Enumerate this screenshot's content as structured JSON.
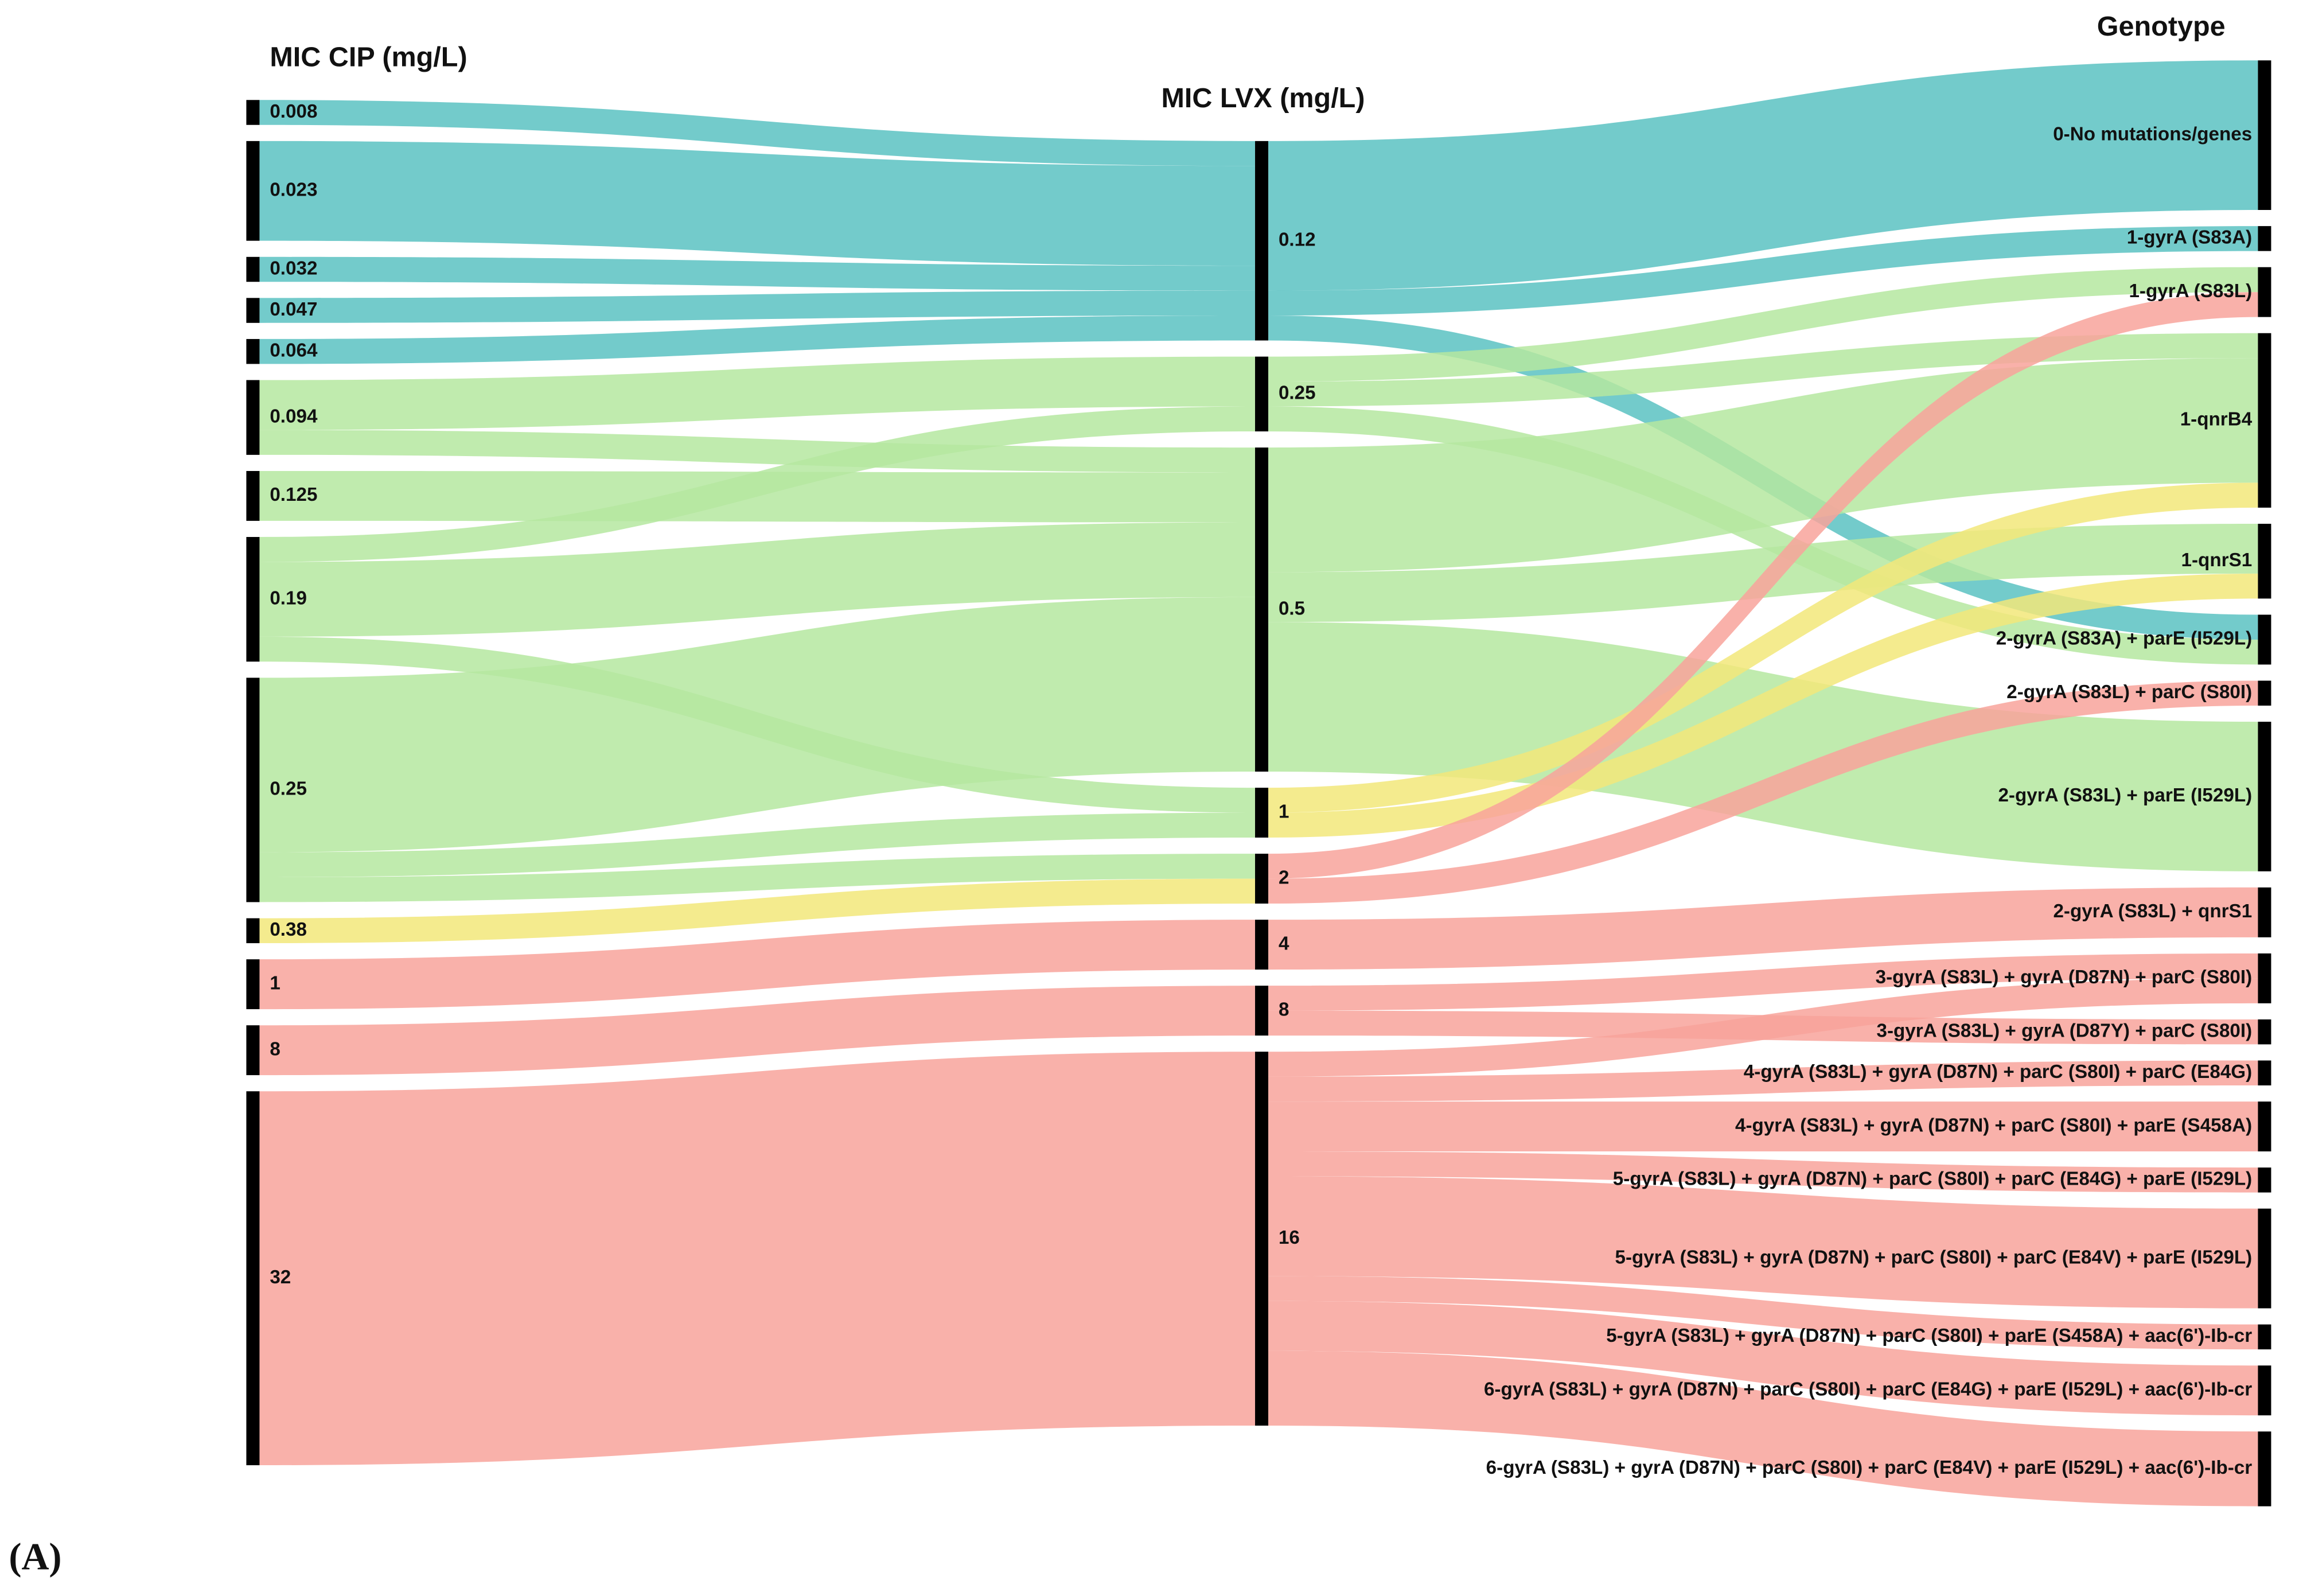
{
  "chart_data": {
    "type": "sankey",
    "panel_label": "(A)",
    "columns": [
      {
        "title": "MIC CIP (mg/L)",
        "nodes": [
          {
            "name": "0.008",
            "color": "#5bc2c2",
            "flows": [
              {
                "to": "0.12",
                "value": 1
              }
            ]
          },
          {
            "name": "0.023",
            "color": "#5bc2c2",
            "flows": [
              {
                "to": "0.12",
                "value": 4
              }
            ]
          },
          {
            "name": "0.032",
            "color": "#5bc2c2",
            "flows": [
              {
                "to": "0.12",
                "value": 1
              }
            ]
          },
          {
            "name": "0.047",
            "color": "#5bc2c2",
            "flows": [
              {
                "to": "0.12",
                "value": 1
              }
            ]
          },
          {
            "name": "0.064",
            "color": "#5bc2c2",
            "flows": [
              {
                "to": "0.12",
                "value": 1
              }
            ]
          },
          {
            "name": "0.094",
            "color": "#b5e8a0",
            "flows": [
              {
                "to": "0.25",
                "value": 2
              },
              {
                "to": "0.5",
                "value": 1
              }
            ]
          },
          {
            "name": "0.125",
            "color": "#b5e8a0",
            "flows": [
              {
                "to": "0.5",
                "value": 2
              }
            ]
          },
          {
            "name": "0.19",
            "color": "#b5e8a0",
            "flows": [
              {
                "to": "0.25",
                "value": 1
              },
              {
                "to": "0.5",
                "value": 3
              },
              {
                "to": "1",
                "value": 1
              }
            ]
          },
          {
            "name": "0.25",
            "color": "#b5e8a0",
            "flows": [
              {
                "to": "0.5",
                "value": 7
              },
              {
                "to": "1",
                "value": 1
              },
              {
                "to": "2",
                "value": 1
              }
            ]
          },
          {
            "name": "0.38",
            "color": "#f2e77a",
            "flows": [
              {
                "to": "2",
                "value": 1
              }
            ]
          },
          {
            "name": "1",
            "color": "#f8a39b",
            "flows": [
              {
                "to": "4",
                "value": 2
              }
            ]
          },
          {
            "name": "8",
            "color": "#f8a39b",
            "flows": [
              {
                "to": "8",
                "value": 2
              }
            ]
          },
          {
            "name": "32",
            "color": "#f8a39b",
            "flows": [
              {
                "to": "16",
                "value": 15
              }
            ]
          }
        ]
      },
      {
        "title": "MIC LVX (mg/L)",
        "nodes": [
          {
            "name": "0.12",
            "color": "#5bc2c2",
            "flows": [
              {
                "to": "0-No mutations/genes",
                "value": 6
              },
              {
                "to": "1-gyrA (S83A)",
                "value": 1
              },
              {
                "to": "2-gyrA (S83A) + parE (I529L)",
                "value": 1
              }
            ]
          },
          {
            "name": "0.25",
            "color": "#b5e8a0",
            "flows": [
              {
                "to": "1-gyrA (S83L)",
                "value": 1
              },
              {
                "to": "1-qnrB4",
                "value": 1
              },
              {
                "to": "2-gyrA (S83A) + parE (I529L)",
                "value": 1
              }
            ]
          },
          {
            "name": "0.5",
            "color": "#b5e8a0",
            "flows": [
              {
                "to": "1-qnrB4",
                "value": 5
              },
              {
                "to": "1-qnrS1",
                "value": 2
              },
              {
                "to": "2-gyrA (S83L) + parE (I529L)",
                "value": 6
              }
            ]
          },
          {
            "name": "1",
            "color": "#f2e77a",
            "flows": [
              {
                "to": "1-qnrB4",
                "value": 1
              },
              {
                "to": "1-qnrS1",
                "value": 1
              }
            ]
          },
          {
            "name": "2",
            "color": "#f8a39b",
            "flows": [
              {
                "to": "1-gyrA (S83L)",
                "value": 1
              },
              {
                "to": "2-gyrA (S83L) + parC (S80I)",
                "value": 1
              }
            ]
          },
          {
            "name": "4",
            "color": "#f8a39b",
            "flows": [
              {
                "to": "2-gyrA (S83L) + qnrS1",
                "value": 2
              }
            ]
          },
          {
            "name": "8",
            "color": "#f8a39b",
            "flows": [
              {
                "to": "3-gyrA (S83L) + gyrA (D87N) + parC (S80I)",
                "value": 1
              },
              {
                "to": "3-gyrA (S83L) + gyrA (D87Y) + parC (S80I)",
                "value": 1
              }
            ]
          },
          {
            "name": "16",
            "color": "#f8a39b",
            "flows": [
              {
                "to": "3-gyrA (S83L) + gyrA (D87N) + parC (S80I)",
                "value": 1
              },
              {
                "to": "4-gyrA (S83L) + gyrA (D87N) + parC (S80I) + parC (E84G)",
                "value": 1
              },
              {
                "to": "4-gyrA (S83L) + gyrA (D87N) + parC (S80I) + parE (S458A)",
                "value": 2
              },
              {
                "to": "5-gyrA (S83L) + gyrA (D87N) + parC (S80I) + parC (E84G) + parE (I529L)",
                "value": 1
              },
              {
                "to": "5-gyrA (S83L) + gyrA (D87N) + parC (S80I) + parC (E84V) + parE (I529L)",
                "value": 4
              },
              {
                "to": "5-gyrA (S83L) + gyrA (D87N) + parC (S80I) + parE (S458A) + aac(6')-Ib-cr",
                "value": 1
              },
              {
                "to": "6-gyrA (S83L) + gyrA (D87N) + parC (S80I) + parC (E84G) + parE (I529L) + aac(6')-Ib-cr",
                "value": 2
              },
              {
                "to": "6-gyrA (S83L) + gyrA (D87N) + parC (S80I) + parC (E84V) + parE (I529L) + aac(6')-Ib-cr",
                "value": 3
              }
            ]
          }
        ]
      },
      {
        "title": "Genotype",
        "nodes": [
          {
            "name": "0-No mutations/genes"
          },
          {
            "name": "1-gyrA (S83A)"
          },
          {
            "name": "1-gyrA (S83L)"
          },
          {
            "name": "1-qnrB4"
          },
          {
            "name": "1-qnrS1"
          },
          {
            "name": "2-gyrA (S83A) + parE (I529L)"
          },
          {
            "name": "2-gyrA (S83L) + parC (S80I)"
          },
          {
            "name": "2-gyrA (S83L) + parE (I529L)"
          },
          {
            "name": "2-gyrA (S83L) + qnrS1"
          },
          {
            "name": "3-gyrA (S83L) + gyrA (D87N) + parC (S80I)"
          },
          {
            "name": "3-gyrA (S83L) + gyrA (D87Y) + parC (S80I)"
          },
          {
            "name": "4-gyrA (S83L) + gyrA (D87N) + parC (S80I) + parC (E84G)"
          },
          {
            "name": "4-gyrA (S83L) + gyrA (D87N) + parC (S80I) + parE (S458A)"
          },
          {
            "name": "5-gyrA (S83L) + gyrA (D87N) + parC (S80I) + parC (E84G) + parE (I529L)"
          },
          {
            "name": "5-gyrA (S83L) + gyrA (D87N) + parC (S80I) + parC (E84V) + parE (I529L)"
          },
          {
            "name": "5-gyrA (S83L) + gyrA (D87N) + parC (S80I) + parE (S458A) + aac(6')-Ib-cr"
          },
          {
            "name": "6-gyrA (S83L) + gyrA (D87N) + parC (S80I) + parC (E84G) + parE (I529L) + aac(6')-Ib-cr"
          },
          {
            "name": "6-gyrA (S83L) + gyrA (D87N) + parC (S80I) + parC (E84V) + parE (I529L) + aac(6')-Ib-cr"
          }
        ]
      }
    ]
  }
}
